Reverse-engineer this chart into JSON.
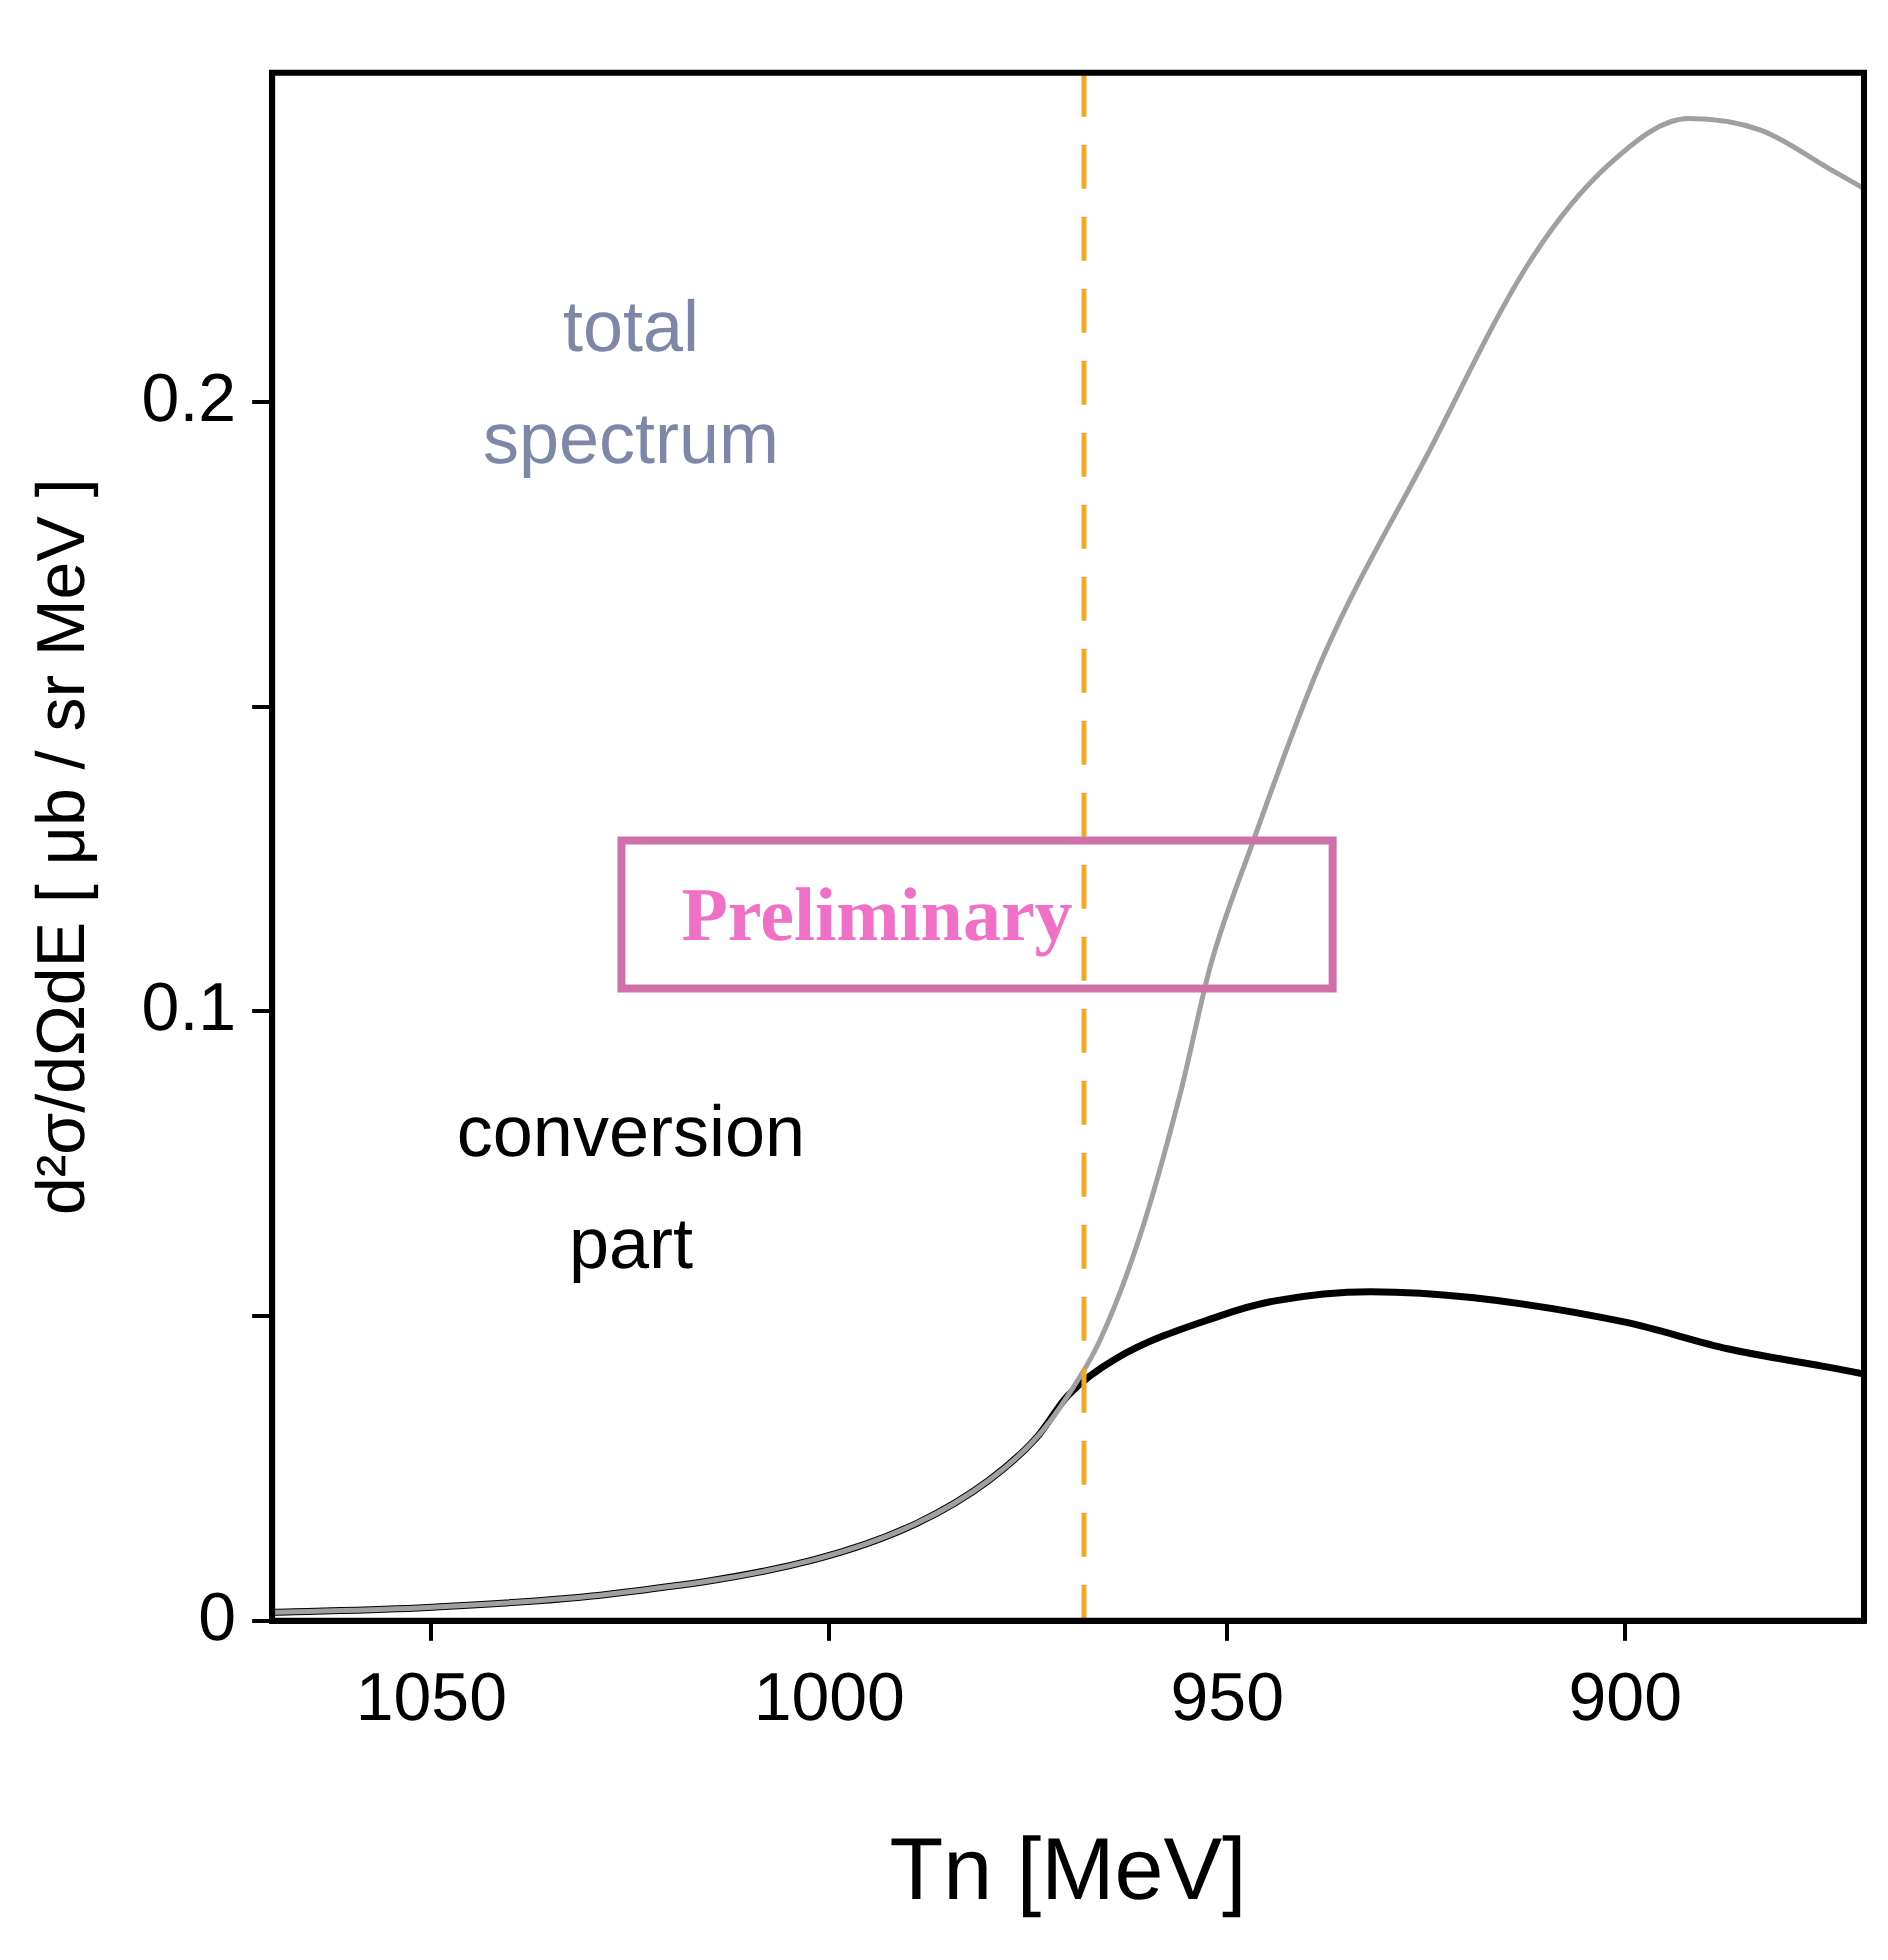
{
  "chart_data": {
    "type": "line",
    "xlabel": "Tn [MeV]",
    "ylabel": "d²σ/dΩdE [ μb / sr MeV ]",
    "xlim": [
      1070,
      870
    ],
    "xticks": [
      1050,
      1000,
      950,
      900
    ],
    "ylim": [
      0,
      0.254
    ],
    "yticks": [
      0,
      {
        "value": 0.05,
        "label": null
      },
      0.1,
      {
        "value": 0.15,
        "label": null
      },
      0.2
    ],
    "grid": false,
    "legend": false,
    "marker": "none",
    "line_style": "solid",
    "series": [
      {
        "name": "total spectrum",
        "color": "#a0a0a0",
        "x": [
          1070,
          1050.5,
          1027.5,
          1002,
          989,
          980,
          974,
          970,
          966,
          961,
          956,
          952,
          947,
          938,
          925,
          912,
          902,
          892,
          883,
          874,
          870
        ],
        "values": [
          0.0014,
          0.0022,
          0.0044,
          0.01,
          0.016,
          0.023,
          0.03,
          0.037,
          0.046,
          0.063,
          0.086,
          0.108,
          0.127,
          0.158,
          0.191,
          0.223,
          0.239,
          0.2465,
          0.2446,
          0.238,
          0.235
        ]
      },
      {
        "name": "conversion part",
        "color": "#000000",
        "x": [
          1070,
          1050.5,
          1027.5,
          1002,
          989,
          980,
          974,
          970,
          964,
          951,
          944,
          932,
          919,
          900,
          887,
          874,
          870
        ],
        "values": [
          0.0014,
          0.0022,
          0.0044,
          0.01,
          0.016,
          0.023,
          0.03,
          0.037,
          0.043,
          0.05,
          0.0525,
          0.054,
          0.053,
          0.049,
          0.0446,
          0.0415,
          0.0405
        ]
      }
    ],
    "ref_lines": [
      {
        "axis": "x",
        "value": 968,
        "color": "#f5a623",
        "line_style": "dashed"
      }
    ],
    "annotations": [
      "Preliminary"
    ]
  }
}
